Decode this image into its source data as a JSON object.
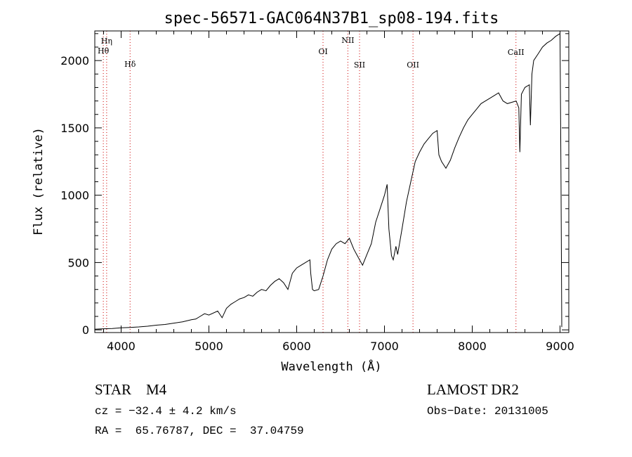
{
  "chart_data": {
    "type": "line",
    "title": "spec-56571-GAC064N37B1_sp08-194.fits",
    "xlabel": "Wavelength (Å)",
    "ylabel": "Flux (relative)",
    "xlim": [
      3700,
      9100
    ],
    "ylim": [
      -20,
      2220
    ],
    "x_ticks": [
      4000,
      5000,
      6000,
      7000,
      8000,
      9000
    ],
    "y_ticks": [
      0,
      500,
      1000,
      1500,
      2000
    ],
    "grid": false,
    "line_color": "#000000",
    "marker_color": "#cc0000",
    "series": [
      {
        "x": [
          3700,
          3800,
          3900,
          4000,
          4100,
          4200,
          4300,
          4400,
          4500,
          4600,
          4700,
          4800,
          4850,
          4900,
          4950,
          5000,
          5100,
          5150,
          5200,
          5250,
          5300,
          5350,
          5400,
          5450,
          5500,
          5550,
          5600,
          5650,
          5700,
          5750,
          5800,
          5850,
          5900,
          5950,
          6000,
          6050,
          6100,
          6150,
          6160,
          6180,
          6200,
          6250,
          6300,
          6350,
          6400,
          6450,
          6500,
          6550,
          6600,
          6650,
          6700,
          6750,
          6800,
          6850,
          6900,
          6950,
          7000,
          7030,
          7050,
          7080,
          7100,
          7130,
          7150,
          7200,
          7250,
          7300,
          7350,
          7400,
          7450,
          7500,
          7550,
          7600,
          7620,
          7650,
          7700,
          7750,
          7800,
          7850,
          7900,
          7950,
          8000,
          8050,
          8100,
          8150,
          8200,
          8250,
          8300,
          8350,
          8400,
          8450,
          8500,
          8530,
          8542,
          8560,
          8600,
          8650,
          8662,
          8680,
          8700,
          8750,
          8800,
          8850,
          8900,
          8950,
          9000,
          9010,
          9020
        ],
        "y": [
          5,
          8,
          10,
          15,
          18,
          22,
          27,
          35,
          40,
          50,
          60,
          75,
          80,
          100,
          120,
          110,
          140,
          90,
          160,
          190,
          210,
          230,
          240,
          260,
          250,
          280,
          300,
          290,
          330,
          360,
          380,
          350,
          300,
          420,
          460,
          480,
          500,
          520,
          420,
          300,
          290,
          300,
          400,
          520,
          600,
          640,
          660,
          640,
          680,
          600,
          540,
          480,
          560,
          640,
          800,
          900,
          1000,
          1080,
          750,
          550,
          520,
          620,
          560,
          750,
          950,
          1100,
          1250,
          1320,
          1380,
          1420,
          1460,
          1480,
          1300,
          1250,
          1200,
          1260,
          1350,
          1430,
          1500,
          1560,
          1600,
          1640,
          1680,
          1700,
          1720,
          1740,
          1760,
          1700,
          1680,
          1690,
          1700,
          1650,
          1320,
          1750,
          1800,
          1820,
          1520,
          1900,
          2000,
          2050,
          2100,
          2130,
          2150,
          2180,
          2200,
          1200,
          20
        ]
      }
    ],
    "lines": [
      {
        "label": "Hη",
        "x": 3835
      },
      {
        "label": "Hθ",
        "x": 3797
      },
      {
        "label": "Hδ",
        "x": 4102
      },
      {
        "label": "OI",
        "x": 6300
      },
      {
        "label": "NII",
        "x": 6583
      },
      {
        "label": "SII",
        "x": 6716
      },
      {
        "label": "OII",
        "x": 7325
      },
      {
        "label": "CaII",
        "x": 8498
      }
    ]
  },
  "info": {
    "star_type": "STAR    M4",
    "survey": "LAMOST DR2",
    "cz": "cz = −32.4 ± 4.2 km/s",
    "obs_date": "Obs−Date: 20131005",
    "coords": "RA =  65.76787, DEC =  37.04759"
  }
}
